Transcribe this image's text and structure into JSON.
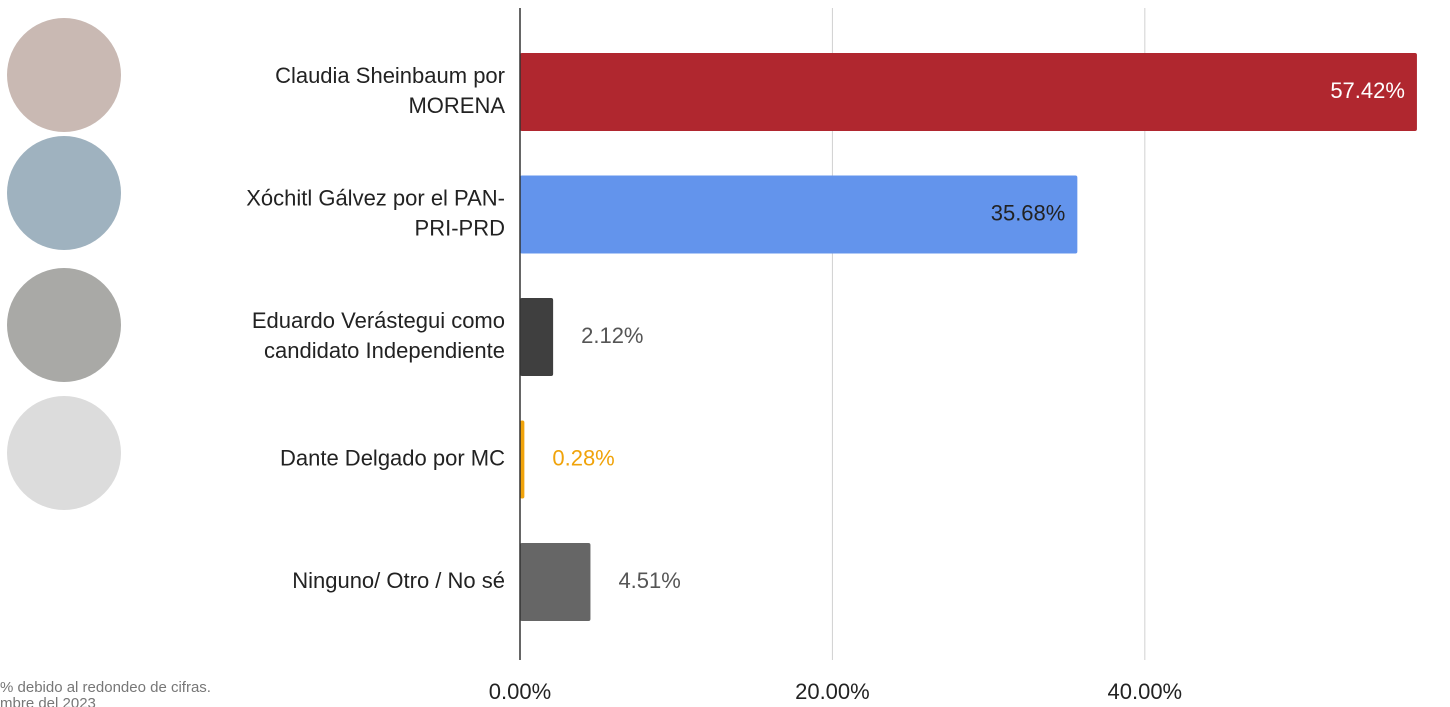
{
  "chart_data": {
    "type": "bar",
    "orientation": "horizontal",
    "categories": [
      [
        "Claudia Sheinbaum por",
        "MORENA"
      ],
      [
        "Xóchitl Gálvez por el PAN-",
        "PRI-PRD"
      ],
      [
        "Eduardo Verástegui como",
        "candidato Independiente"
      ],
      [
        "Dante Delgado por MC"
      ],
      [
        "Ninguno/ Otro / No sé"
      ]
    ],
    "values": [
      57.42,
      35.68,
      2.12,
      0.28,
      4.51
    ],
    "value_labels": [
      "57.42%",
      "35.68%",
      "2.12%",
      "0.28%",
      "4.51%"
    ],
    "colors": [
      "#b0272f",
      "#6394ec",
      "#3f3f3f",
      "#f0a30a",
      "#666666"
    ],
    "xlim": [
      0,
      58
    ],
    "xticks": [
      {
        "value": 0,
        "label": "0.00%"
      },
      {
        "value": 20,
        "label": "20.00%"
      },
      {
        "value": 40,
        "label": "40.00%"
      }
    ],
    "grid": true,
    "footnotes": [
      "% debido al redondeo de cifras.",
      "mbre del 2023"
    ]
  }
}
